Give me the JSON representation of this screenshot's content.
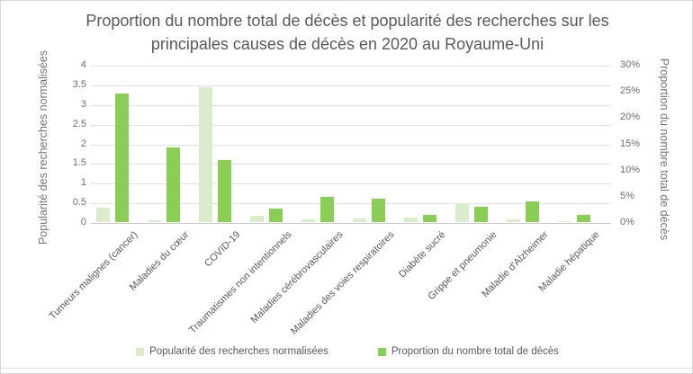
{
  "window": {
    "background": "#ffffff",
    "border_color": "#d6d6d6"
  },
  "chart_data": {
    "type": "bar",
    "title": "Proportion du nombre total de décès et popularité des recherches sur les principales causes de décès en 2020 au Royaume-Uni",
    "categories": [
      "Tumeurs malignes (cancer)",
      "Maladies du cœur",
      "COVID-19",
      "Traumatismes non intentionnels",
      "Maladies cérébrovasculaires",
      "Maladies des voies respiratoires",
      "Diabète sucré",
      "Grippe et pneumonie",
      "Maladie d'Alzheimer",
      "Maladie hépatique"
    ],
    "series": [
      {
        "name": "Popularité des recherches normalisées",
        "axis": "left",
        "color": "#dcebcd",
        "values": [
          0.37,
          0.05,
          3.42,
          0.15,
          0.06,
          0.09,
          0.11,
          0.48,
          0.06,
          0.03
        ]
      },
      {
        "name": "Proportion du nombre total de décès",
        "axis": "right",
        "color": "#8ccd57",
        "unit": "%",
        "values": [
          24.6,
          14.3,
          11.8,
          2.6,
          4.8,
          4.5,
          1.3,
          3.0,
          3.9,
          1.3
        ]
      }
    ],
    "left_axis": {
      "label": "Popularité des recherches normalisées",
      "min": 0,
      "max": 4,
      "step": 0.5,
      "ticks": [
        "4",
        "3.5",
        "3",
        "2.5",
        "2",
        "1.5",
        "1",
        "0.5",
        "0"
      ]
    },
    "right_axis": {
      "label": "Proportion du nombre total de décès",
      "min": 0,
      "max": 30,
      "step": 5,
      "ticks": [
        "30%",
        "25%",
        "20%",
        "15%",
        "10%",
        "5%",
        "0%"
      ]
    },
    "grid": true,
    "legend_position": "bottom"
  },
  "styles": {
    "title_color": "#595959",
    "axis_title_color": "#757575",
    "tick_color": "#6e6e6e",
    "grid_color": "#e2e2e2",
    "axis_line_color": "#c9c9c9",
    "category_label_color": "#595959"
  }
}
